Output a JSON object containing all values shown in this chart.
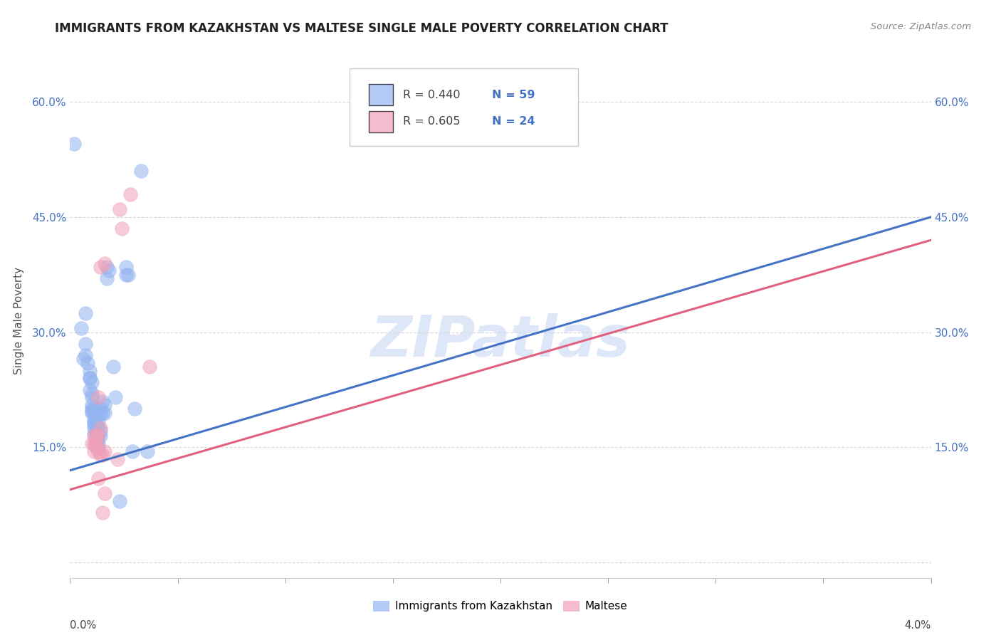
{
  "title": "IMMIGRANTS FROM KAZAKHSTAN VS MALTESE SINGLE MALE POVERTY CORRELATION CHART",
  "source": "Source: ZipAtlas.com",
  "ylabel": "Single Male Poverty",
  "xlim": [
    0.0,
    0.04
  ],
  "ylim": [
    -0.02,
    0.65
  ],
  "watermark": "ZIPatlas",
  "legend_blue_r": "R = 0.440",
  "legend_blue_n": "N = 59",
  "legend_pink_r": "R = 0.605",
  "legend_pink_n": "N = 24",
  "blue_color": "#92B4F0",
  "pink_color": "#F0A0B8",
  "blue_line_color": "#4472C4",
  "pink_line_color": "#E06080",
  "text_blue": "#4472C4",
  "text_pink": "#E06080",
  "text_dark": "#404040",
  "blue_scatter": [
    [
      0.0002,
      0.545
    ],
    [
      0.0005,
      0.305
    ],
    [
      0.0006,
      0.265
    ],
    [
      0.0007,
      0.325
    ],
    [
      0.0007,
      0.285
    ],
    [
      0.0007,
      0.27
    ],
    [
      0.0008,
      0.26
    ],
    [
      0.0009,
      0.25
    ],
    [
      0.0009,
      0.24
    ],
    [
      0.0009,
      0.24
    ],
    [
      0.0009,
      0.225
    ],
    [
      0.001,
      0.235
    ],
    [
      0.001,
      0.22
    ],
    [
      0.001,
      0.215
    ],
    [
      0.001,
      0.205
    ],
    [
      0.001,
      0.2
    ],
    [
      0.001,
      0.198
    ],
    [
      0.001,
      0.195
    ],
    [
      0.0011,
      0.2
    ],
    [
      0.0011,
      0.192
    ],
    [
      0.0011,
      0.185
    ],
    [
      0.0011,
      0.182
    ],
    [
      0.0011,
      0.18
    ],
    [
      0.0011,
      0.175
    ],
    [
      0.0011,
      0.168
    ],
    [
      0.0012,
      0.195
    ],
    [
      0.0012,
      0.185
    ],
    [
      0.0012,
      0.178
    ],
    [
      0.0012,
      0.17
    ],
    [
      0.0012,
      0.165
    ],
    [
      0.0012,
      0.16
    ],
    [
      0.0012,
      0.158
    ],
    [
      0.0012,
      0.152
    ],
    [
      0.0013,
      0.185
    ],
    [
      0.0013,
      0.175
    ],
    [
      0.0013,
      0.165
    ],
    [
      0.0013,
      0.155
    ],
    [
      0.0013,
      0.15
    ],
    [
      0.0014,
      0.2
    ],
    [
      0.0014,
      0.195
    ],
    [
      0.0014,
      0.172
    ],
    [
      0.0014,
      0.165
    ],
    [
      0.0015,
      0.21
    ],
    [
      0.0015,
      0.195
    ],
    [
      0.0016,
      0.205
    ],
    [
      0.0016,
      0.195
    ],
    [
      0.0017,
      0.385
    ],
    [
      0.0017,
      0.37
    ],
    [
      0.0018,
      0.38
    ],
    [
      0.002,
      0.255
    ],
    [
      0.0021,
      0.215
    ],
    [
      0.0023,
      0.08
    ],
    [
      0.0026,
      0.385
    ],
    [
      0.0026,
      0.375
    ],
    [
      0.0027,
      0.375
    ],
    [
      0.0029,
      0.145
    ],
    [
      0.003,
      0.2
    ],
    [
      0.0033,
      0.51
    ],
    [
      0.0036,
      0.145
    ]
  ],
  "pink_scatter": [
    [
      0.001,
      0.155
    ],
    [
      0.0011,
      0.165
    ],
    [
      0.0011,
      0.155
    ],
    [
      0.0011,
      0.145
    ],
    [
      0.0012,
      0.165
    ],
    [
      0.0012,
      0.155
    ],
    [
      0.0012,
      0.15
    ],
    [
      0.0013,
      0.215
    ],
    [
      0.0013,
      0.165
    ],
    [
      0.0013,
      0.145
    ],
    [
      0.0013,
      0.11
    ],
    [
      0.0014,
      0.385
    ],
    [
      0.0014,
      0.175
    ],
    [
      0.0014,
      0.14
    ],
    [
      0.0015,
      0.14
    ],
    [
      0.0015,
      0.065
    ],
    [
      0.0016,
      0.39
    ],
    [
      0.0016,
      0.145
    ],
    [
      0.0016,
      0.09
    ],
    [
      0.0022,
      0.135
    ],
    [
      0.0023,
      0.46
    ],
    [
      0.0024,
      0.435
    ],
    [
      0.0028,
      0.48
    ],
    [
      0.0037,
      0.255
    ]
  ],
  "blue_fit_x": [
    0.0,
    0.04
  ],
  "blue_fit_y": [
    0.12,
    0.45
  ],
  "pink_fit_x": [
    0.0,
    0.04
  ],
  "pink_fit_y": [
    0.095,
    0.42
  ],
  "yticks": [
    0.0,
    0.15,
    0.3,
    0.45,
    0.6
  ],
  "ytick_labels": [
    "",
    "15.0%",
    "30.0%",
    "45.0%",
    "60.0%"
  ],
  "xticks": [
    0.0,
    0.005,
    0.01,
    0.015,
    0.02,
    0.025,
    0.03,
    0.035,
    0.04
  ],
  "grid_color": "#d8d8d8",
  "bg_color": "#ffffff"
}
